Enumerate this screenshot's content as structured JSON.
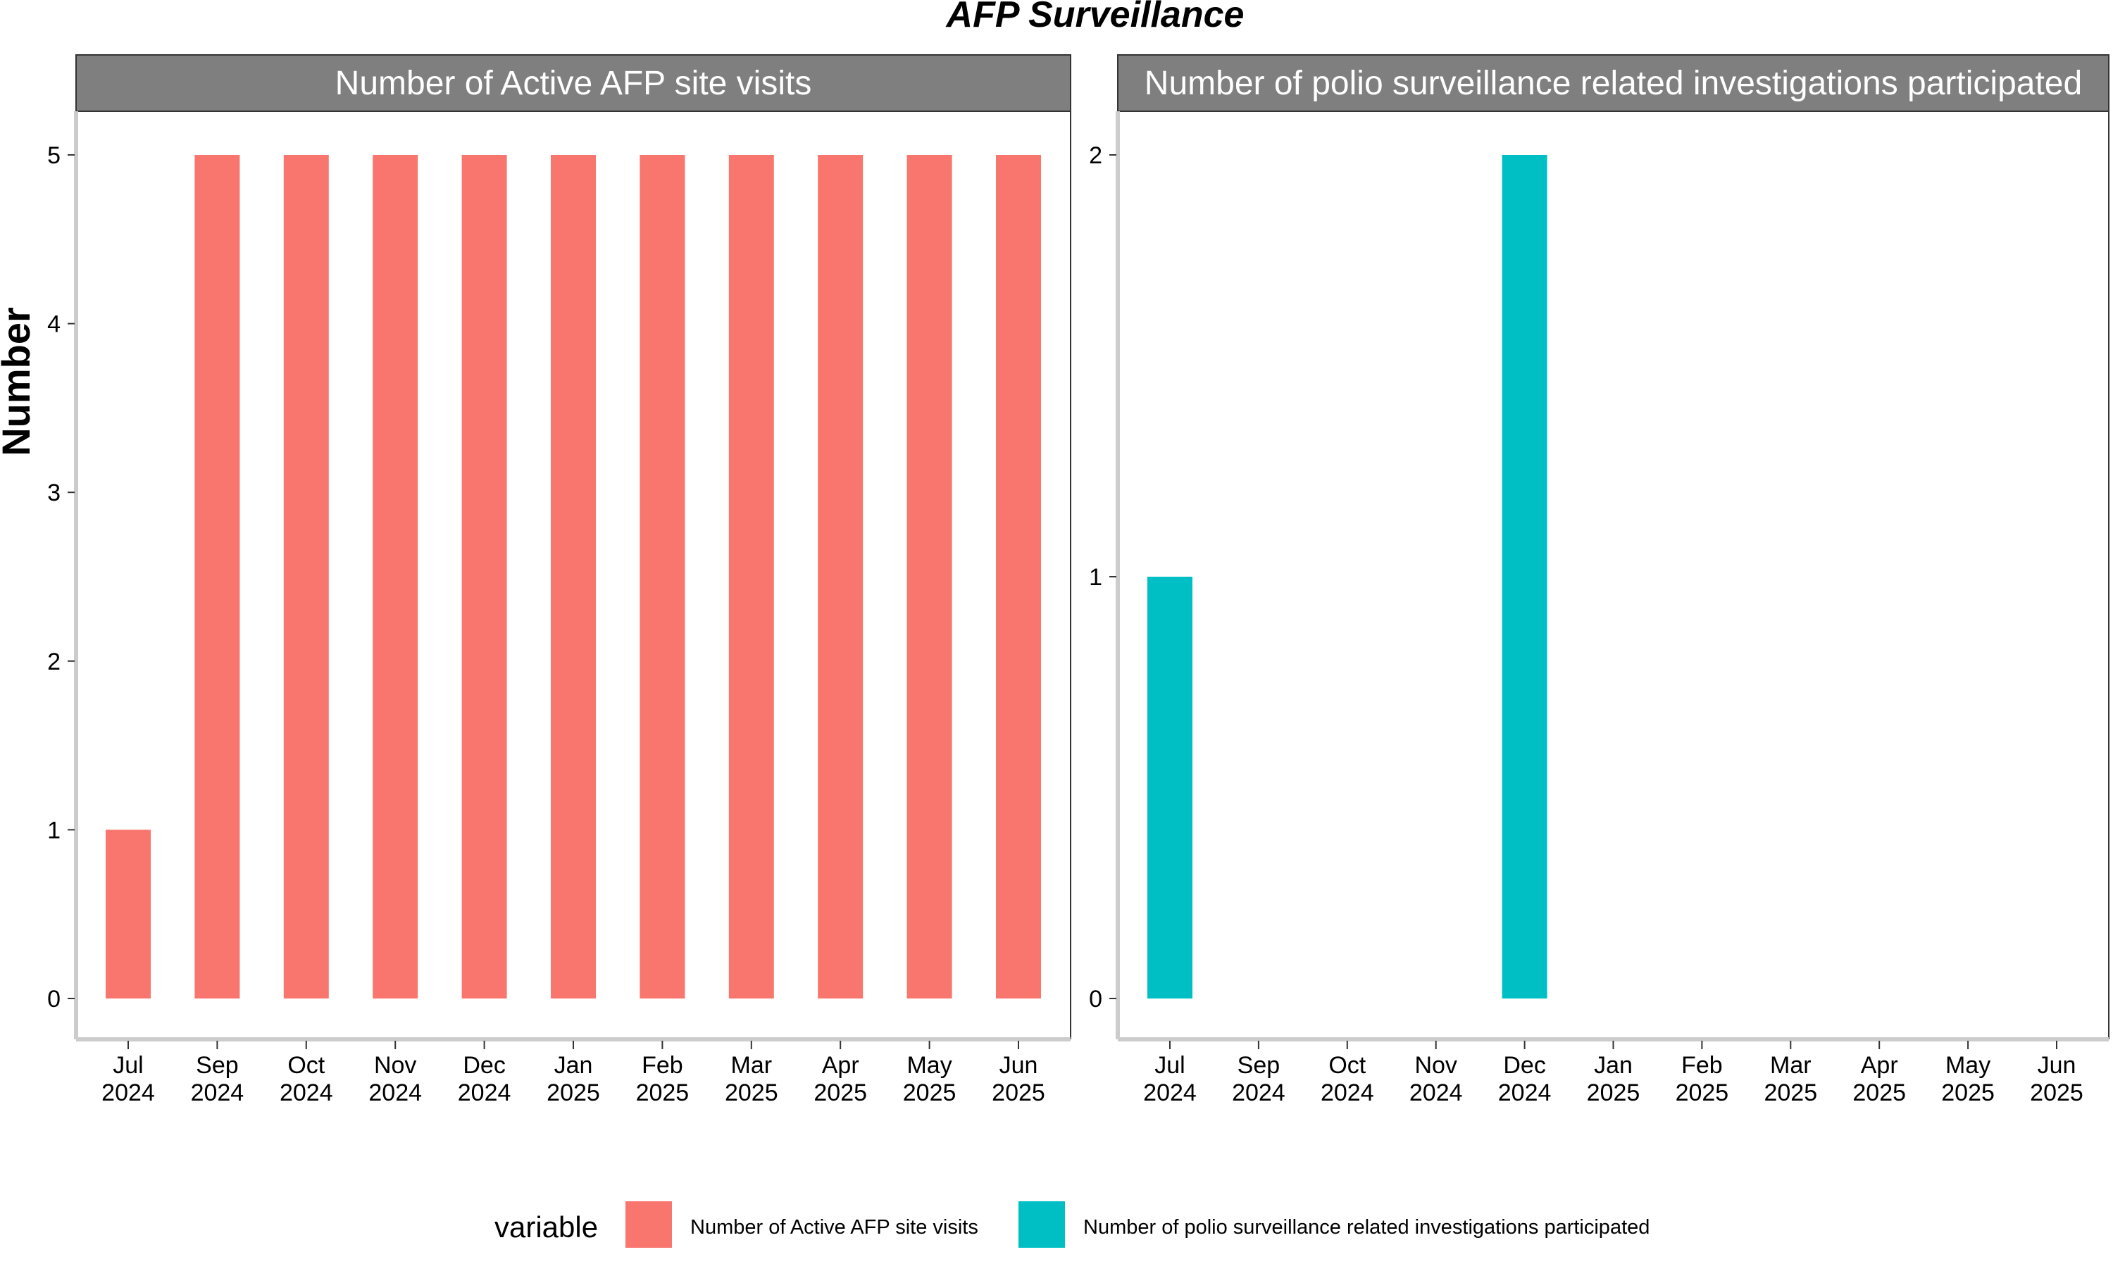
{
  "chart_data": {
    "type": "bar",
    "title": "AFP Surveillance",
    "ylabel": "Number",
    "legend": {
      "title": "variable",
      "position": "bottom",
      "entries": [
        {
          "label": "Number of Active AFP site visits",
          "color": "#F8766D"
        },
        {
          "label": "Number of polio surveillance related investigations participated",
          "color": "#00BFC4"
        }
      ]
    },
    "categories": [
      [
        "Jul",
        "2024"
      ],
      [
        "Sep",
        "2024"
      ],
      [
        "Oct",
        "2024"
      ],
      [
        "Nov",
        "2024"
      ],
      [
        "Dec",
        "2024"
      ],
      [
        "Jan",
        "2025"
      ],
      [
        "Feb",
        "2025"
      ],
      [
        "Mar",
        "2025"
      ],
      [
        "Apr",
        "2025"
      ],
      [
        "May",
        "2025"
      ],
      [
        "Jun",
        "2025"
      ]
    ],
    "panels": [
      {
        "strip": "Number of Active AFP site visits",
        "color": "#F8766D",
        "ylim": [
          0,
          5
        ],
        "yticks": [
          0,
          1,
          2,
          3,
          4,
          5
        ],
        "values": [
          1,
          5,
          5,
          5,
          5,
          5,
          5,
          5,
          5,
          5,
          5
        ]
      },
      {
        "strip": "Number of polio surveillance related investigations participated",
        "color": "#00BFC4",
        "ylim": [
          0,
          2
        ],
        "yticks": [
          0,
          1,
          2
        ],
        "values": [
          1,
          0,
          0,
          0,
          2,
          0,
          0,
          0,
          0,
          0,
          0
        ]
      }
    ],
    "grid": false,
    "strip_fill": "#7F7F7F"
  }
}
